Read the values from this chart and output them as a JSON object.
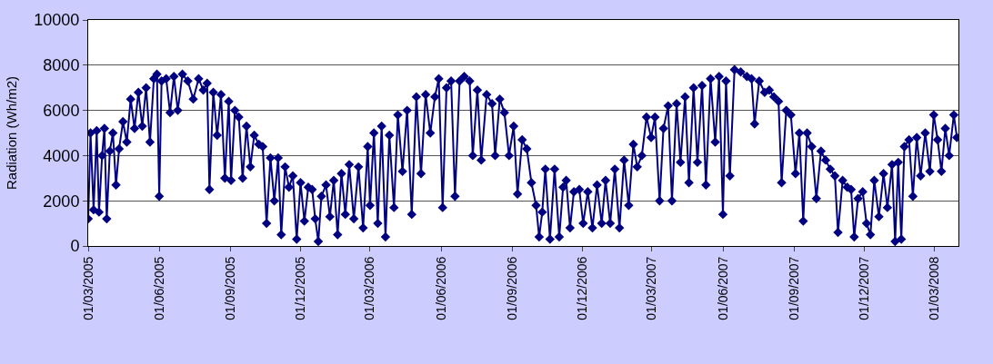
{
  "chart_data": {
    "type": "line",
    "ylabel": "Radiation (Wh/m2)",
    "x": [
      "2005-03-01",
      "2005-03-04",
      "2005-03-08",
      "2005-03-12",
      "2005-03-15",
      "2005-03-19",
      "2005-03-22",
      "2005-03-25",
      "2005-03-29",
      "2005-04-02",
      "2005-04-06",
      "2005-04-10",
      "2005-04-15",
      "2005-04-20",
      "2005-04-25",
      "2005-04-30",
      "2005-05-05",
      "2005-05-10",
      "2005-05-15",
      "2005-05-20",
      "2005-05-25",
      "2005-05-29",
      "2005-06-01",
      "2005-06-04",
      "2005-06-10",
      "2005-06-15",
      "2005-06-20",
      "2005-06-25",
      "2005-07-01",
      "2005-07-08",
      "2005-07-15",
      "2005-07-22",
      "2005-07-28",
      "2005-08-02",
      "2005-08-05",
      "2005-08-10",
      "2005-08-15",
      "2005-08-20",
      "2005-08-25",
      "2005-08-30",
      "2005-09-02",
      "2005-09-07",
      "2005-09-12",
      "2005-09-17",
      "2005-09-22",
      "2005-09-27",
      "2005-10-02",
      "2005-10-08",
      "2005-10-13",
      "2005-10-18",
      "2005-10-23",
      "2005-10-28",
      "2005-11-02",
      "2005-11-06",
      "2005-11-11",
      "2005-11-16",
      "2005-11-21",
      "2005-11-26",
      "2005-12-01",
      "2005-12-06",
      "2005-12-11",
      "2005-12-16",
      "2005-12-20",
      "2005-12-24",
      "2005-12-28",
      "2006-01-03",
      "2006-01-08",
      "2006-01-13",
      "2006-01-18",
      "2006-01-23",
      "2006-01-28",
      "2006-02-02",
      "2006-02-08",
      "2006-02-14",
      "2006-02-20",
      "2006-02-26",
      "2006-03-01",
      "2006-03-06",
      "2006-03-11",
      "2006-03-16",
      "2006-03-21",
      "2006-03-26",
      "2006-04-01",
      "2006-04-06",
      "2006-04-12",
      "2006-04-18",
      "2006-04-24",
      "2006-04-30",
      "2006-05-06",
      "2006-05-12",
      "2006-05-18",
      "2006-05-24",
      "2006-05-29",
      "2006-06-03",
      "2006-06-08",
      "2006-06-14",
      "2006-06-19",
      "2006-06-25",
      "2006-07-01",
      "2006-07-08",
      "2006-07-12",
      "2006-07-18",
      "2006-07-23",
      "2006-07-30",
      "2006-08-06",
      "2006-08-10",
      "2006-08-16",
      "2006-08-22",
      "2006-08-28",
      "2006-09-03",
      "2006-09-08",
      "2006-09-14",
      "2006-09-20",
      "2006-09-26",
      "2006-10-02",
      "2006-10-06",
      "2006-10-10",
      "2006-10-14",
      "2006-10-20",
      "2006-10-26",
      "2006-11-01",
      "2006-11-06",
      "2006-11-10",
      "2006-11-15",
      "2006-11-20",
      "2006-11-27",
      "2006-12-02",
      "2006-12-08",
      "2006-12-14",
      "2006-12-20",
      "2006-12-26",
      "2006-12-31",
      "2007-01-06",
      "2007-01-12",
      "2007-01-18",
      "2007-01-24",
      "2007-01-30",
      "2007-02-05",
      "2007-02-10",
      "2007-02-16",
      "2007-02-22",
      "2007-02-28",
      "2007-03-05",
      "2007-03-11",
      "2007-03-16",
      "2007-03-22",
      "2007-03-27",
      "2007-04-02",
      "2007-04-07",
      "2007-04-13",
      "2007-04-18",
      "2007-04-24",
      "2007-04-29",
      "2007-05-05",
      "2007-05-10",
      "2007-05-16",
      "2007-05-22",
      "2007-05-27",
      "2007-06-01",
      "2007-06-05",
      "2007-06-10",
      "2007-06-16",
      "2007-06-24",
      "2007-07-02",
      "2007-07-08",
      "2007-07-12",
      "2007-07-18",
      "2007-07-25",
      "2007-07-31",
      "2007-08-06",
      "2007-08-12",
      "2007-08-16",
      "2007-08-22",
      "2007-08-28",
      "2007-09-03",
      "2007-09-08",
      "2007-09-13",
      "2007-09-18",
      "2007-09-24",
      "2007-09-30",
      "2007-10-06",
      "2007-10-12",
      "2007-10-18",
      "2007-10-24",
      "2007-10-28",
      "2007-11-03",
      "2007-11-09",
      "2007-11-14",
      "2007-11-18",
      "2007-11-23",
      "2007-11-29",
      "2007-12-04",
      "2007-12-09",
      "2007-12-14",
      "2007-12-20",
      "2007-12-26",
      "2007-12-31",
      "2008-01-06",
      "2008-01-10",
      "2008-01-14",
      "2008-01-18",
      "2008-01-22",
      "2008-01-28",
      "2008-02-02",
      "2008-02-07",
      "2008-02-12",
      "2008-02-18",
      "2008-02-24",
      "2008-02-29",
      "2008-03-05",
      "2008-03-10",
      "2008-03-15",
      "2008-03-20",
      "2008-03-26",
      "2008-03-30"
    ],
    "series": [
      {
        "color": "#000080",
        "values": [
          1200,
          5000,
          1600,
          5100,
          1500,
          4000,
          5200,
          1200,
          4200,
          5000,
          2700,
          4300,
          5500,
          4600,
          6500,
          5200,
          6800,
          5300,
          7000,
          4600,
          7400,
          7600,
          2200,
          7300,
          7400,
          5900,
          7500,
          6000,
          7600,
          7300,
          6500,
          7400,
          6900,
          7200,
          2500,
          6800,
          4900,
          6700,
          3000,
          6400,
          2900,
          6000,
          5700,
          3000,
          5300,
          3500,
          4900,
          4500,
          4400,
          1000,
          3900,
          2000,
          3900,
          500,
          3500,
          2600,
          3100,
          300,
          2800,
          1100,
          2600,
          2500,
          1200,
          200,
          2200,
          2700,
          1300,
          2900,
          500,
          3200,
          1400,
          3600,
          1200,
          3500,
          800,
          4400,
          1800,
          5000,
          1000,
          5300,
          400,
          4900,
          1700,
          5800,
          3300,
          6000,
          1400,
          6600,
          3200,
          6700,
          5000,
          6600,
          7400,
          1700,
          7000,
          7300,
          2200,
          7300,
          7500,
          7300,
          4000,
          6900,
          3800,
          6700,
          6300,
          4000,
          6500,
          5900,
          4000,
          5300,
          2300,
          4700,
          4300,
          2800,
          1800,
          400,
          1500,
          3400,
          300,
          3400,
          400,
          2600,
          2900,
          800,
          2400,
          2500,
          1000,
          2400,
          800,
          2700,
          1000,
          2900,
          1000,
          3400,
          800,
          3800,
          1800,
          4500,
          3500,
          4000,
          5700,
          4800,
          5700,
          2000,
          5200,
          6200,
          2000,
          6300,
          3700,
          6600,
          2800,
          7000,
          3700,
          7100,
          2700,
          7400,
          4600,
          7500,
          1400,
          7300,
          3100,
          7800,
          7700,
          7500,
          7400,
          5400,
          7300,
          6800,
          6900,
          6600,
          6400,
          2800,
          6000,
          5800,
          3200,
          5000,
          1100,
          5000,
          4400,
          2100,
          4200,
          3800,
          3400,
          3100,
          600,
          2900,
          2600,
          2500,
          400,
          2100,
          2400,
          1000,
          500,
          2900,
          1300,
          3200,
          1700,
          3600,
          200,
          3700,
          300,
          4400,
          4700,
          2200,
          4800,
          3100,
          5000,
          3300,
          5800,
          4700,
          3300,
          5200,
          4000,
          5800,
          4800
        ]
      }
    ],
    "xlim": [
      "2005-03-01",
      "2008-04-01"
    ],
    "xticks": [
      {
        "value": "2005-03-01",
        "label": "01/03/2005"
      },
      {
        "value": "2005-06-01",
        "label": "01/06/2005"
      },
      {
        "value": "2005-09-01",
        "label": "01/09/2005"
      },
      {
        "value": "2005-12-01",
        "label": "01/12/2005"
      },
      {
        "value": "2006-03-01",
        "label": "01/03/2006"
      },
      {
        "value": "2006-06-01",
        "label": "01/06/2006"
      },
      {
        "value": "2006-09-01",
        "label": "01/09/2006"
      },
      {
        "value": "2006-12-01",
        "label": "01/12/2006"
      },
      {
        "value": "2007-03-01",
        "label": "01/03/2007"
      },
      {
        "value": "2007-06-01",
        "label": "01/06/2007"
      },
      {
        "value": "2007-09-01",
        "label": "01/09/2007"
      },
      {
        "value": "2007-12-01",
        "label": "01/12/2007"
      },
      {
        "value": "2008-03-01",
        "label": "01/03/2008"
      }
    ],
    "ylim": [
      0,
      10000
    ],
    "yticks": [
      0,
      2000,
      4000,
      6000,
      8000,
      10000
    ],
    "grid": "y",
    "marker": "diamond",
    "line_style": "solid"
  }
}
